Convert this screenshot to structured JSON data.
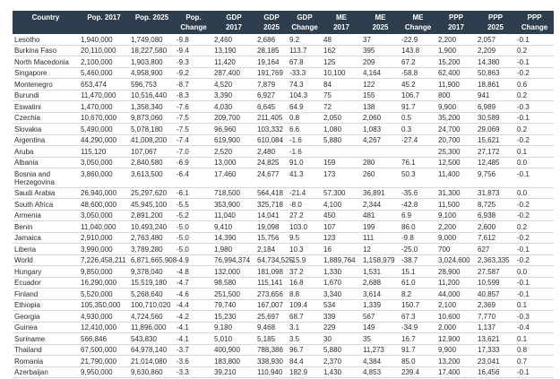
{
  "colors": {
    "header_bg": "#2f3e4e",
    "header_text": "#ffffff",
    "body_text": "#2b2b2b",
    "row_border": "#d8d8d8",
    "page_bg": "#ffffff"
  },
  "chart_data": {
    "type": "table",
    "columns": [
      {
        "id": "country",
        "label": "Country"
      },
      {
        "id": "pop-2017",
        "label": "Pop. 2017"
      },
      {
        "id": "pop-2025",
        "label": "Pop. 2025"
      },
      {
        "id": "pop-change",
        "label": "Pop.\nChange"
      },
      {
        "id": "gdp-2017",
        "label": "GDP\n2017"
      },
      {
        "id": "gdp-2025",
        "label": "GDP\n2025"
      },
      {
        "id": "gdp-change",
        "label": "GDP\nChange"
      },
      {
        "id": "me-2017",
        "label": "ME\n2017"
      },
      {
        "id": "me-2025",
        "label": "ME\n2025"
      },
      {
        "id": "me-change",
        "label": "ME\nChange"
      },
      {
        "id": "ppp-2017",
        "label": "PPP\n2017"
      },
      {
        "id": "ppp-2025",
        "label": "PPP\n2025"
      },
      {
        "id": "ppp-change",
        "label": "PPP\nChange"
      }
    ],
    "rows": [
      [
        "Lesotho",
        "1,940,000",
        "1,749,080",
        "-9.8",
        "2,460",
        "2,686",
        "9.2",
        "48",
        "37",
        "-22.9",
        "2,200",
        "2,057",
        "-0.1"
      ],
      [
        "Burkina Faso",
        "20,110,000",
        "18,227,580",
        "-9.4",
        "13,190",
        "28,185",
        "113.7",
        "162",
        "395",
        "143.8",
        "1,900",
        "2,209",
        "0.2"
      ],
      [
        "North Macedonia",
        "2,100,000",
        "1,903,800",
        "-9.3",
        "11,420",
        "19,164",
        "67.8",
        "125",
        "209",
        "67.2",
        "15,200",
        "14,380",
        "-0.1"
      ],
      [
        "Singapore",
        "5,460,000",
        "4,958,900",
        "-9.2",
        "287,400",
        "191,769",
        "-33.3",
        "10,100",
        "4,164",
        "-58.8",
        "62,400",
        "50,863",
        "-0.2"
      ],
      [
        "Montenegro",
        "653,474",
        "596,753",
        "-8.7",
        "4,520",
        "7,879",
        "74.3",
        "84",
        "122",
        "45.2",
        "11,900",
        "18,861",
        "0.6"
      ],
      [
        "Burundi",
        "11,470,000",
        "10,516,440",
        "-8.3",
        "3,390",
        "6,927",
        "104.3",
        "75",
        "155",
        "106.7",
        "800",
        "941",
        "0.2"
      ],
      [
        "Eswatini",
        "1,470,000",
        "1,358,340",
        "-7.6",
        "4,030",
        "6,645",
        "64.9",
        "72",
        "138",
        "91.7",
        "9,900",
        "6,989",
        "-0.3"
      ],
      [
        "Czechia",
        "10,670,000",
        "9,873,060",
        "-7.5",
        "209,700",
        "211,405",
        "0.8",
        "2,050",
        "2,060",
        "0.5",
        "35,200",
        "30,589",
        "-0.1"
      ],
      [
        "Slovakia",
        "5,490,000",
        "5,078,180",
        "-7.5",
        "96,960",
        "103,332",
        "6.6",
        "1,080",
        "1,083",
        "0.3",
        "24,700",
        "29,069",
        "0.2"
      ],
      [
        "Argentina",
        "44,290,000",
        "41,008,200",
        "-7.4",
        "619,900",
        "610,084",
        "-1.6",
        "5,880",
        "4,267",
        "-27.4",
        "20,700",
        "15,621",
        "-0.2"
      ],
      [
        "Aruba",
        "115,120",
        "107,067",
        "-7.0",
        "2,520",
        "2,480",
        "-1.6",
        "",
        "",
        "",
        "25,300",
        "27,172",
        "0.1"
      ],
      [
        "Albania",
        "3,050,000",
        "2,840,580",
        "-6.9",
        "13,000",
        "24,825",
        "91.0",
        "159",
        "280",
        "76.1",
        "12,500",
        "12,485",
        "0.0"
      ],
      [
        "Bosnia and Herzegovina",
        "3,860,000",
        "3,613,500",
        "-6.4",
        "17,460",
        "24,677",
        "41.3",
        "173",
        "260",
        "50.3",
        "11,400",
        "9,756",
        "-0.1"
      ],
      [
        "Saudi Arabia",
        "26,940,000",
        "25,297,620",
        "-6.1",
        "718,500",
        "564,418",
        "-21.4",
        "57,300",
        "36,891",
        "-35.6",
        "31,300",
        "31,873",
        "0.0"
      ],
      [
        "South Africa",
        "48,600,000",
        "45,945,100",
        "-5.5",
        "353,900",
        "325,718",
        "-8.0",
        "4,100",
        "2,344",
        "-42.8",
        "11,500",
        "8,725",
        "-0.2"
      ],
      [
        "Armenia",
        "3,050,000",
        "2,891,200",
        "-5.2",
        "11,040",
        "14,041",
        "27.2",
        "450",
        "481",
        "6.9",
        "9,100",
        "6,938",
        "-0.2"
      ],
      [
        "Benin",
        "11,040,000",
        "10,493,240",
        "-5.0",
        "9,410",
        "19,098",
        "103.0",
        "107",
        "199",
        "86.0",
        "2,200",
        "2,600",
        "0.2"
      ],
      [
        "Jamaica",
        "2,910,000",
        "2,763,480",
        "-5.0",
        "14,390",
        "15,756",
        "9.5",
        "123",
        "111",
        "-9.8",
        "9,000",
        "7,612",
        "-0.2"
      ],
      [
        "Liberia",
        "3,990,000",
        "3,789,280",
        "-5.0",
        "1,980",
        "2,184",
        "10.3",
        "16",
        "12",
        "-25.0",
        "700",
        "627",
        "-0.1"
      ],
      [
        "World",
        "7,226,458,211",
        "6,871,665,908",
        "-4.9",
        "76,994,374",
        "64,734,525",
        "-15.9",
        "1,889,764",
        "1,158,979",
        "-38.7",
        "3,024,600",
        "2,363,335",
        "-0.2"
      ],
      [
        "Hungary",
        "9,850,000",
        "9,378,040",
        "-4.8",
        "132,000",
        "181,098",
        "37.2",
        "1,330",
        "1,531",
        "15.1",
        "28,900",
        "27,587",
        "0.0"
      ],
      [
        "Ecuador",
        "16,290,000",
        "15,519,180",
        "-4.7",
        "98,580",
        "115,141",
        "16.8",
        "1,670",
        "2,688",
        "61.0",
        "11,200",
        "10,599",
        "-0.1"
      ],
      [
        "Finland",
        "5,520,000",
        "5,268,640",
        "-4.6",
        "251,500",
        "273,656",
        "8.8",
        "3,340",
        "3,614",
        "8.2",
        "44,000",
        "40,857",
        "-0.1"
      ],
      [
        "Ethiopia",
        "105,350,000",
        "100,710,020",
        "-4.4",
        "79,740",
        "167,007",
        "109.4",
        "534",
        "1,339",
        "150.7",
        "2,100",
        "2,369",
        "0.1"
      ],
      [
        "Georgia",
        "4,930,000",
        "4,724,560",
        "-4.2",
        "15,230",
        "25,697",
        "68.7",
        "339",
        "567",
        "67.3",
        "10,600",
        "7,770",
        "-0.3"
      ],
      [
        "Guinea",
        "12,410,000",
        "11,896,000",
        "-4.1",
        "9,180",
        "9,468",
        "3.1",
        "229",
        "149",
        "-34.9",
        "2,000",
        "1,137",
        "-0.4"
      ],
      [
        "Suriname",
        "566,846",
        "543,830",
        "-4.1",
        "5,010",
        "5,185",
        "3.5",
        "30",
        "35",
        "16.7",
        "12,900",
        "13,621",
        "0.1"
      ],
      [
        "Thailand",
        "67,500,000",
        "64,978,140",
        "-3.7",
        "400,900",
        "788,386",
        "96.7",
        "5,880",
        "11,273",
        "91.7",
        "9,900",
        "17,333",
        "0.8"
      ],
      [
        "Romania",
        "21,790,000",
        "21,014,080",
        "-3.6",
        "183,800",
        "338,930",
        "84.4",
        "2,370",
        "4,384",
        "85.0",
        "13,200",
        "23,041",
        "0.7"
      ],
      [
        "Azerbaijan",
        "9,950,000",
        "9,630,860",
        "-3.3",
        "39,210",
        "110,940",
        "182.9",
        "1,430",
        "4,853",
        "239.4",
        "17,400",
        "16,456",
        "-0.1"
      ]
    ]
  }
}
